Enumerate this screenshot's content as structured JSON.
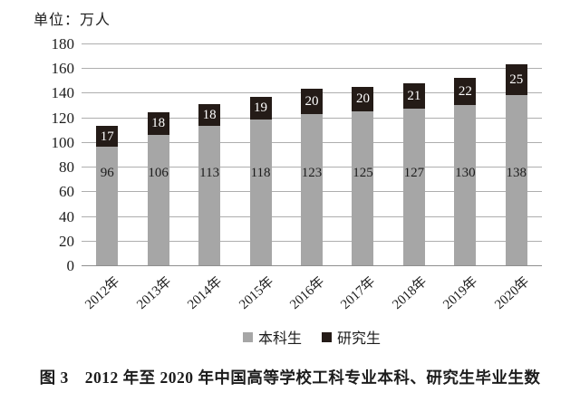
{
  "caption": "图 3　2012 年至 2020 年中国高等学校工科专业本科、研究生毕业生数",
  "chart_data": {
    "type": "bar",
    "stacked": true,
    "title": "",
    "unit_label": "单位：万人",
    "categories": [
      "2012年",
      "2013年",
      "2014年",
      "2015年",
      "2016年",
      "2017年",
      "2018年",
      "2019年",
      "2020年"
    ],
    "series": [
      {
        "name": "本科生",
        "color": "#a6a6a6",
        "label_color": "#1c1c1c",
        "values": [
          96,
          106,
          113,
          118,
          123,
          125,
          127,
          130,
          138
        ]
      },
      {
        "name": "研究生",
        "color": "#241b17",
        "label_color": "#ffffff",
        "values": [
          17,
          18,
          18,
          19,
          20,
          20,
          21,
          22,
          25
        ]
      }
    ],
    "totals": [
      113,
      124,
      131,
      137,
      143,
      145,
      148,
      152,
      163
    ],
    "ylim": [
      0,
      180
    ],
    "ytick_step": 20,
    "ytick_labels": [
      "0",
      "20",
      "40",
      "60",
      "80",
      "100",
      "120",
      "140",
      "160",
      "180"
    ],
    "grid": true,
    "gridline_color": "#aeaeae",
    "legend_position": "bottom",
    "xlabel": "",
    "ylabel": ""
  }
}
